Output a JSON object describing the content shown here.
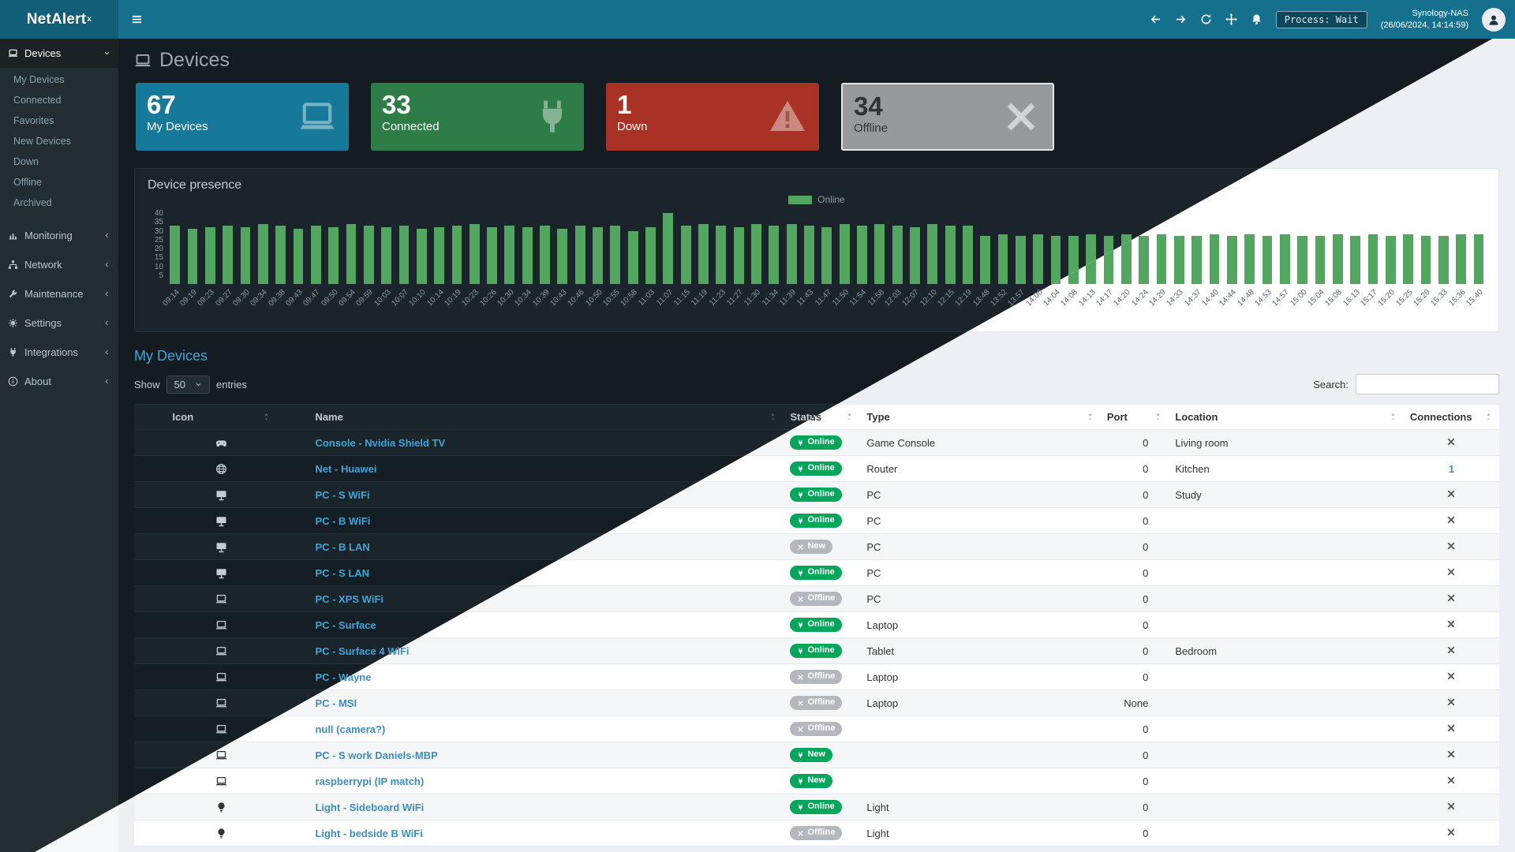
{
  "app": {
    "logo": "NetAlert",
    "logo_sup": "x"
  },
  "navbar": {
    "process_label": "Process: Wait",
    "host": "Synology-NAS",
    "timestamp": "(26/06/2024, 14:14:59)"
  },
  "sidebar": {
    "devices_label": "Devices",
    "device_submenu": [
      "My Devices",
      "Connected",
      "Favorites",
      "New Devices",
      "Down",
      "Offline",
      "Archived"
    ],
    "sections": [
      {
        "label": "Monitoring",
        "icon": "chart"
      },
      {
        "label": "Network",
        "icon": "network"
      },
      {
        "label": "Maintenance",
        "icon": "wrench"
      },
      {
        "label": "Settings",
        "icon": "gear"
      },
      {
        "label": "Integrations",
        "icon": "plug"
      },
      {
        "label": "About",
        "icon": "info"
      }
    ]
  },
  "page": {
    "title": "Devices"
  },
  "cards": [
    {
      "value": "67",
      "label": "My Devices",
      "color": "#17799a",
      "icon": "laptop"
    },
    {
      "value": "33",
      "label": "Connected",
      "color": "#2e7d46",
      "icon": "plug"
    },
    {
      "value": "1",
      "label": "Down",
      "color": "#a93226",
      "icon": "warning"
    },
    {
      "value": "34",
      "label": "Offline",
      "color": "#97999b",
      "icon": "close",
      "selected": true,
      "text_color": "#2d3338"
    }
  ],
  "presence": {
    "title": "Device presence",
    "legend": "Online",
    "chart_data": {
      "type": "bar",
      "title": "Device presence",
      "legend_entries": [
        "Online"
      ],
      "color": "#53a65f",
      "ylim": [
        0,
        40
      ],
      "yticks": [
        40,
        35,
        30,
        25,
        20,
        15,
        10,
        5
      ],
      "categories": [
        "09:14",
        "09:19",
        "09:23",
        "09:27",
        "09:30",
        "09:34",
        "09:38",
        "09:43",
        "09:47",
        "09:50",
        "09:54",
        "09:59",
        "10:03",
        "10:07",
        "10:10",
        "10:14",
        "10:19",
        "10:23",
        "10:26",
        "10:30",
        "10:34",
        "10:39",
        "10:43",
        "10:46",
        "10:50",
        "10:55",
        "10:58",
        "11:03",
        "11:07",
        "11:15",
        "11:19",
        "11:23",
        "11:27",
        "11:30",
        "11:34",
        "11:39",
        "11:43",
        "11:47",
        "11:50",
        "11:54",
        "11:58",
        "12:03",
        "12:07",
        "12:10",
        "12:15",
        "12:19",
        "13:48",
        "13:52",
        "13:57",
        "14:00",
        "14:04",
        "14:08",
        "14:13",
        "14:17",
        "14:20",
        "14:24",
        "14:29",
        "14:33",
        "14:37",
        "14:40",
        "14:44",
        "14:48",
        "14:53",
        "14:57",
        "15:00",
        "15:04",
        "15:08",
        "15:13",
        "15:17",
        "15:20",
        "15:25",
        "15:29",
        "15:33",
        "15:36",
        "15:40"
      ],
      "values": [
        33,
        31,
        32,
        33,
        32,
        34,
        33,
        31,
        33,
        32,
        34,
        33,
        32,
        33,
        31,
        32,
        33,
        34,
        32,
        33,
        32,
        33,
        31,
        33,
        32,
        33,
        30,
        32,
        40,
        33,
        34,
        33,
        32,
        34,
        33,
        34,
        33,
        32,
        34,
        33,
        34,
        33,
        32,
        34,
        33,
        33,
        27,
        28,
        27,
        28,
        27,
        27,
        28,
        27,
        28,
        27,
        28,
        27,
        27,
        28,
        27,
        28,
        27,
        28,
        27,
        27,
        28,
        27,
        28,
        27,
        28,
        27,
        27,
        28,
        28
      ]
    }
  },
  "status_colors": {
    "green": "#00a65a",
    "gray": "#b3b8be"
  },
  "devices_table": {
    "title": "My Devices",
    "show_label": "Show",
    "page_size": "50",
    "entries_label": "entries",
    "search_label": "Search:",
    "columns": [
      "Icon",
      "Name",
      "Status",
      "Type",
      "Port",
      "Location",
      "Connections"
    ],
    "rows": [
      {
        "icon": "gamepad",
        "name": "Console - Nvidia Shield TV",
        "status": "Online",
        "status_style": "green",
        "type": "Game Console",
        "port": "0",
        "location": "Living room",
        "connections": "x"
      },
      {
        "icon": "globe",
        "name": "Net - Huawei",
        "status": "Online",
        "status_style": "green",
        "type": "Router",
        "port": "0",
        "location": "Kitchen",
        "connections": "1"
      },
      {
        "icon": "desktop",
        "name": "PC - S WiFi",
        "status": "Online",
        "status_style": "green",
        "type": "PC",
        "port": "0",
        "location": "Study",
        "connections": "x"
      },
      {
        "icon": "desktop",
        "name": "PC - B WiFi",
        "status": "Online",
        "status_style": "green",
        "type": "PC",
        "port": "0",
        "location": "",
        "connections": "x"
      },
      {
        "icon": "desktop",
        "name": "PC - B LAN",
        "status": "New",
        "status_style": "gray",
        "type": "PC",
        "port": "0",
        "location": "",
        "connections": "x"
      },
      {
        "icon": "desktop",
        "name": "PC - S LAN",
        "status": "Online",
        "status_style": "green",
        "type": "PC",
        "port": "0",
        "location": "",
        "connections": "x"
      },
      {
        "icon": "laptop",
        "name": "PC - XPS WiFi",
        "status": "Offline",
        "status_style": "gray",
        "type": "PC",
        "port": "0",
        "location": "",
        "connections": "x"
      },
      {
        "icon": "laptop",
        "name": "PC - Surface",
        "status": "Online",
        "status_style": "green",
        "type": "Laptop",
        "port": "0",
        "location": "",
        "connections": "x"
      },
      {
        "icon": "laptop",
        "name": "PC - Surface 4 WiFi",
        "status": "Online",
        "status_style": "green",
        "type": "Tablet",
        "port": "0",
        "location": "Bedroom",
        "connections": "x"
      },
      {
        "icon": "laptop",
        "name": "PC - Wayne",
        "status": "Offline",
        "status_style": "gray",
        "type": "Laptop",
        "port": "0",
        "location": "",
        "connections": "x"
      },
      {
        "icon": "laptop",
        "name": "PC - MSI",
        "status": "Offline",
        "status_style": "gray",
        "type": "Laptop",
        "port": "None",
        "location": "",
        "connections": "x"
      },
      {
        "icon": "laptop",
        "name": "null (camera?)",
        "status": "Offline",
        "status_style": "gray",
        "type": "",
        "port": "0",
        "location": "",
        "connections": "x"
      },
      {
        "icon": "laptop",
        "name": "PC - S work Daniels-MBP",
        "status": "New",
        "status_style": "green",
        "type": "",
        "port": "0",
        "location": "",
        "connections": "x"
      },
      {
        "icon": "laptop",
        "name": "raspberrypi (IP match)",
        "status": "New",
        "status_style": "green",
        "type": "",
        "port": "0",
        "location": "",
        "connections": "x"
      },
      {
        "icon": "lightbulb",
        "name": "Light - Sideboard WiFi",
        "status": "Online",
        "status_style": "green",
        "type": "Light",
        "port": "0",
        "location": "",
        "connections": "x"
      },
      {
        "icon": "lightbulb",
        "name": "Light - bedside B WiFi",
        "status": "Offline",
        "status_style": "gray",
        "type": "Light",
        "port": "0",
        "location": "",
        "connections": "x"
      }
    ]
  }
}
